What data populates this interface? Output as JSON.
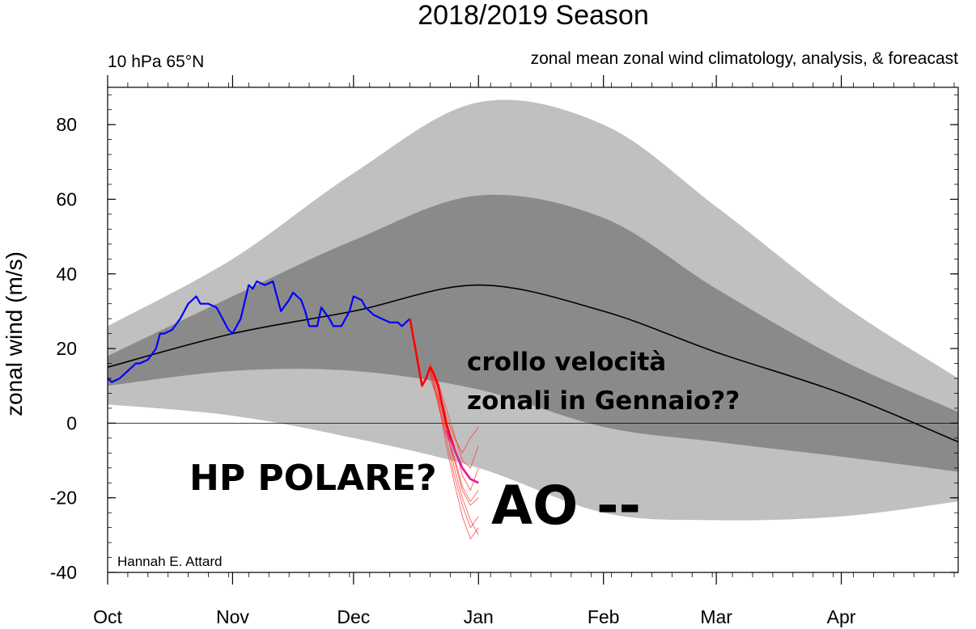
{
  "chart_data": {
    "type": "line",
    "title": "2018/2019 Season",
    "subtitle_left": "10 hPa 65°N",
    "subtitle_right": "zonal mean zonal wind climatology, analysis, & foreacast",
    "ylabel": "zonal wind (m/s)",
    "xlabel": "",
    "credit": "Hannah E. Attard",
    "x_unit": "days since Oct 1",
    "xlim": [
      0,
      211
    ],
    "ylim": [
      -40,
      90
    ],
    "grid": false,
    "zero_line": true,
    "x_tick_labels": [
      {
        "label": "Oct",
        "day": 0
      },
      {
        "label": "Nov",
        "day": 31
      },
      {
        "label": "Dec",
        "day": 61
      },
      {
        "label": "Jan",
        "day": 92
      },
      {
        "label": "Feb",
        "day": 123
      },
      {
        "label": "Mar",
        "day": 151
      },
      {
        "label": "Apr",
        "day": 182
      }
    ],
    "y_ticks": [
      -40,
      -20,
      0,
      20,
      40,
      60,
      80
    ],
    "colors": {
      "outer_band": "#c0c0c0",
      "inner_band": "#8a8a8a",
      "climatology": "#000000",
      "analysis": "#0000ff",
      "forecast_mean": "#ff0000",
      "forecast_members": "#ff3030",
      "forecast_ens_mean": "#e020c0"
    },
    "series": [
      {
        "name": "outer_upper",
        "role": "band",
        "x": [
          0,
          31,
          61,
          92,
          123,
          151,
          182,
          211
        ],
        "values": [
          26,
          44,
          67,
          86,
          80,
          58,
          32,
          12
        ]
      },
      {
        "name": "outer_lower",
        "role": "band",
        "x": [
          0,
          31,
          61,
          92,
          123,
          151,
          182,
          211
        ],
        "values": [
          5,
          2,
          -4,
          -12,
          -24,
          -26,
          -25,
          -21
        ]
      },
      {
        "name": "inner_upper",
        "role": "band",
        "x": [
          0,
          31,
          61,
          92,
          123,
          151,
          182,
          211
        ],
        "values": [
          18,
          34,
          49,
          61,
          55,
          36,
          17,
          3
        ]
      },
      {
        "name": "inner_lower",
        "role": "band",
        "x": [
          0,
          31,
          61,
          92,
          123,
          151,
          182,
          211
        ],
        "values": [
          10,
          14,
          14,
          9,
          -1,
          -5,
          -9,
          -13
        ]
      },
      {
        "name": "climatology",
        "role": "line",
        "x": [
          0,
          31,
          61,
          92,
          123,
          151,
          182,
          211
        ],
        "values": [
          15,
          24,
          30,
          37,
          30,
          19,
          8,
          -5
        ]
      },
      {
        "name": "analysis",
        "role": "line",
        "x": [
          0,
          1,
          3,
          5,
          7,
          8,
          10,
          12,
          13,
          14,
          16,
          18,
          20,
          22,
          23,
          25,
          27,
          28,
          30,
          31,
          33,
          35,
          36,
          37,
          39,
          41,
          42,
          43,
          45,
          46,
          48,
          49,
          50,
          52,
          53,
          55,
          56,
          58,
          60,
          61,
          63,
          64,
          65,
          66,
          68,
          70,
          71,
          72,
          73,
          74,
          75
        ],
        "values": [
          12,
          11,
          12,
          14,
          16,
          16,
          17,
          20,
          24,
          24,
          25,
          28,
          32,
          34,
          32,
          32,
          31,
          29,
          25,
          24,
          28,
          37,
          36,
          38,
          37,
          38,
          34,
          30,
          33,
          35,
          33,
          30,
          26,
          26,
          31,
          28,
          26,
          26,
          30,
          34,
          33,
          31,
          30,
          29,
          28,
          27,
          27,
          27,
          26,
          27,
          28
        ]
      },
      {
        "name": "forecast_mean",
        "role": "line",
        "x": [
          75,
          76,
          77,
          78,
          79,
          80,
          81,
          82,
          83,
          84,
          86,
          88,
          90,
          92
        ],
        "values": [
          28,
          22,
          16,
          10,
          12,
          15,
          13,
          10,
          5,
          0,
          -7,
          -12,
          -15,
          -16
        ]
      },
      {
        "name": "forecast_ens_mean",
        "role": "line",
        "x": [
          84,
          86,
          88,
          90,
          92
        ],
        "values": [
          -2,
          -7,
          -12,
          -15,
          -16
        ]
      },
      {
        "name": "member",
        "role": "member",
        "x": [
          80,
          82,
          84,
          86,
          88,
          90,
          92
        ],
        "values": [
          15,
          6,
          -6,
          -16,
          -25,
          -31,
          -28
        ]
      },
      {
        "name": "member",
        "role": "member",
        "x": [
          80,
          82,
          84,
          86,
          88,
          90,
          92
        ],
        "values": [
          14,
          8,
          -2,
          -10,
          -18,
          -22,
          -20
        ]
      },
      {
        "name": "member",
        "role": "member",
        "x": [
          80,
          82,
          84,
          86,
          88,
          90,
          92
        ],
        "values": [
          16,
          10,
          2,
          -4,
          -8,
          -4,
          -1
        ]
      },
      {
        "name": "member",
        "role": "member",
        "x": [
          80,
          82,
          84,
          86,
          88,
          90,
          92
        ],
        "values": [
          13,
          7,
          -1,
          -12,
          -20,
          -26,
          -30
        ]
      },
      {
        "name": "member",
        "role": "member",
        "x": [
          80,
          82,
          84,
          86,
          88,
          90,
          92
        ],
        "values": [
          15,
          9,
          0,
          -6,
          -14,
          -18,
          -12
        ]
      },
      {
        "name": "member",
        "role": "member",
        "x": [
          80,
          82,
          84,
          86,
          88,
          90,
          92
        ],
        "values": [
          14,
          5,
          -4,
          -14,
          -22,
          -28,
          -25
        ]
      },
      {
        "name": "member",
        "role": "member",
        "x": [
          80,
          82,
          84,
          86,
          88,
          90,
          92
        ],
        "values": [
          16,
          11,
          4,
          -3,
          -10,
          -12,
          -6
        ]
      },
      {
        "name": "member",
        "role": "member",
        "x": [
          80,
          82,
          84,
          86,
          88,
          90,
          92
        ],
        "values": [
          12,
          6,
          -3,
          -9,
          -17,
          -21,
          -18
        ]
      }
    ]
  },
  "annotations": {
    "crollo_line1": "crollo velocità",
    "crollo_line2": "zonali in Gennaio??",
    "hp": "HP POLARE?",
    "ao": "AO --"
  }
}
